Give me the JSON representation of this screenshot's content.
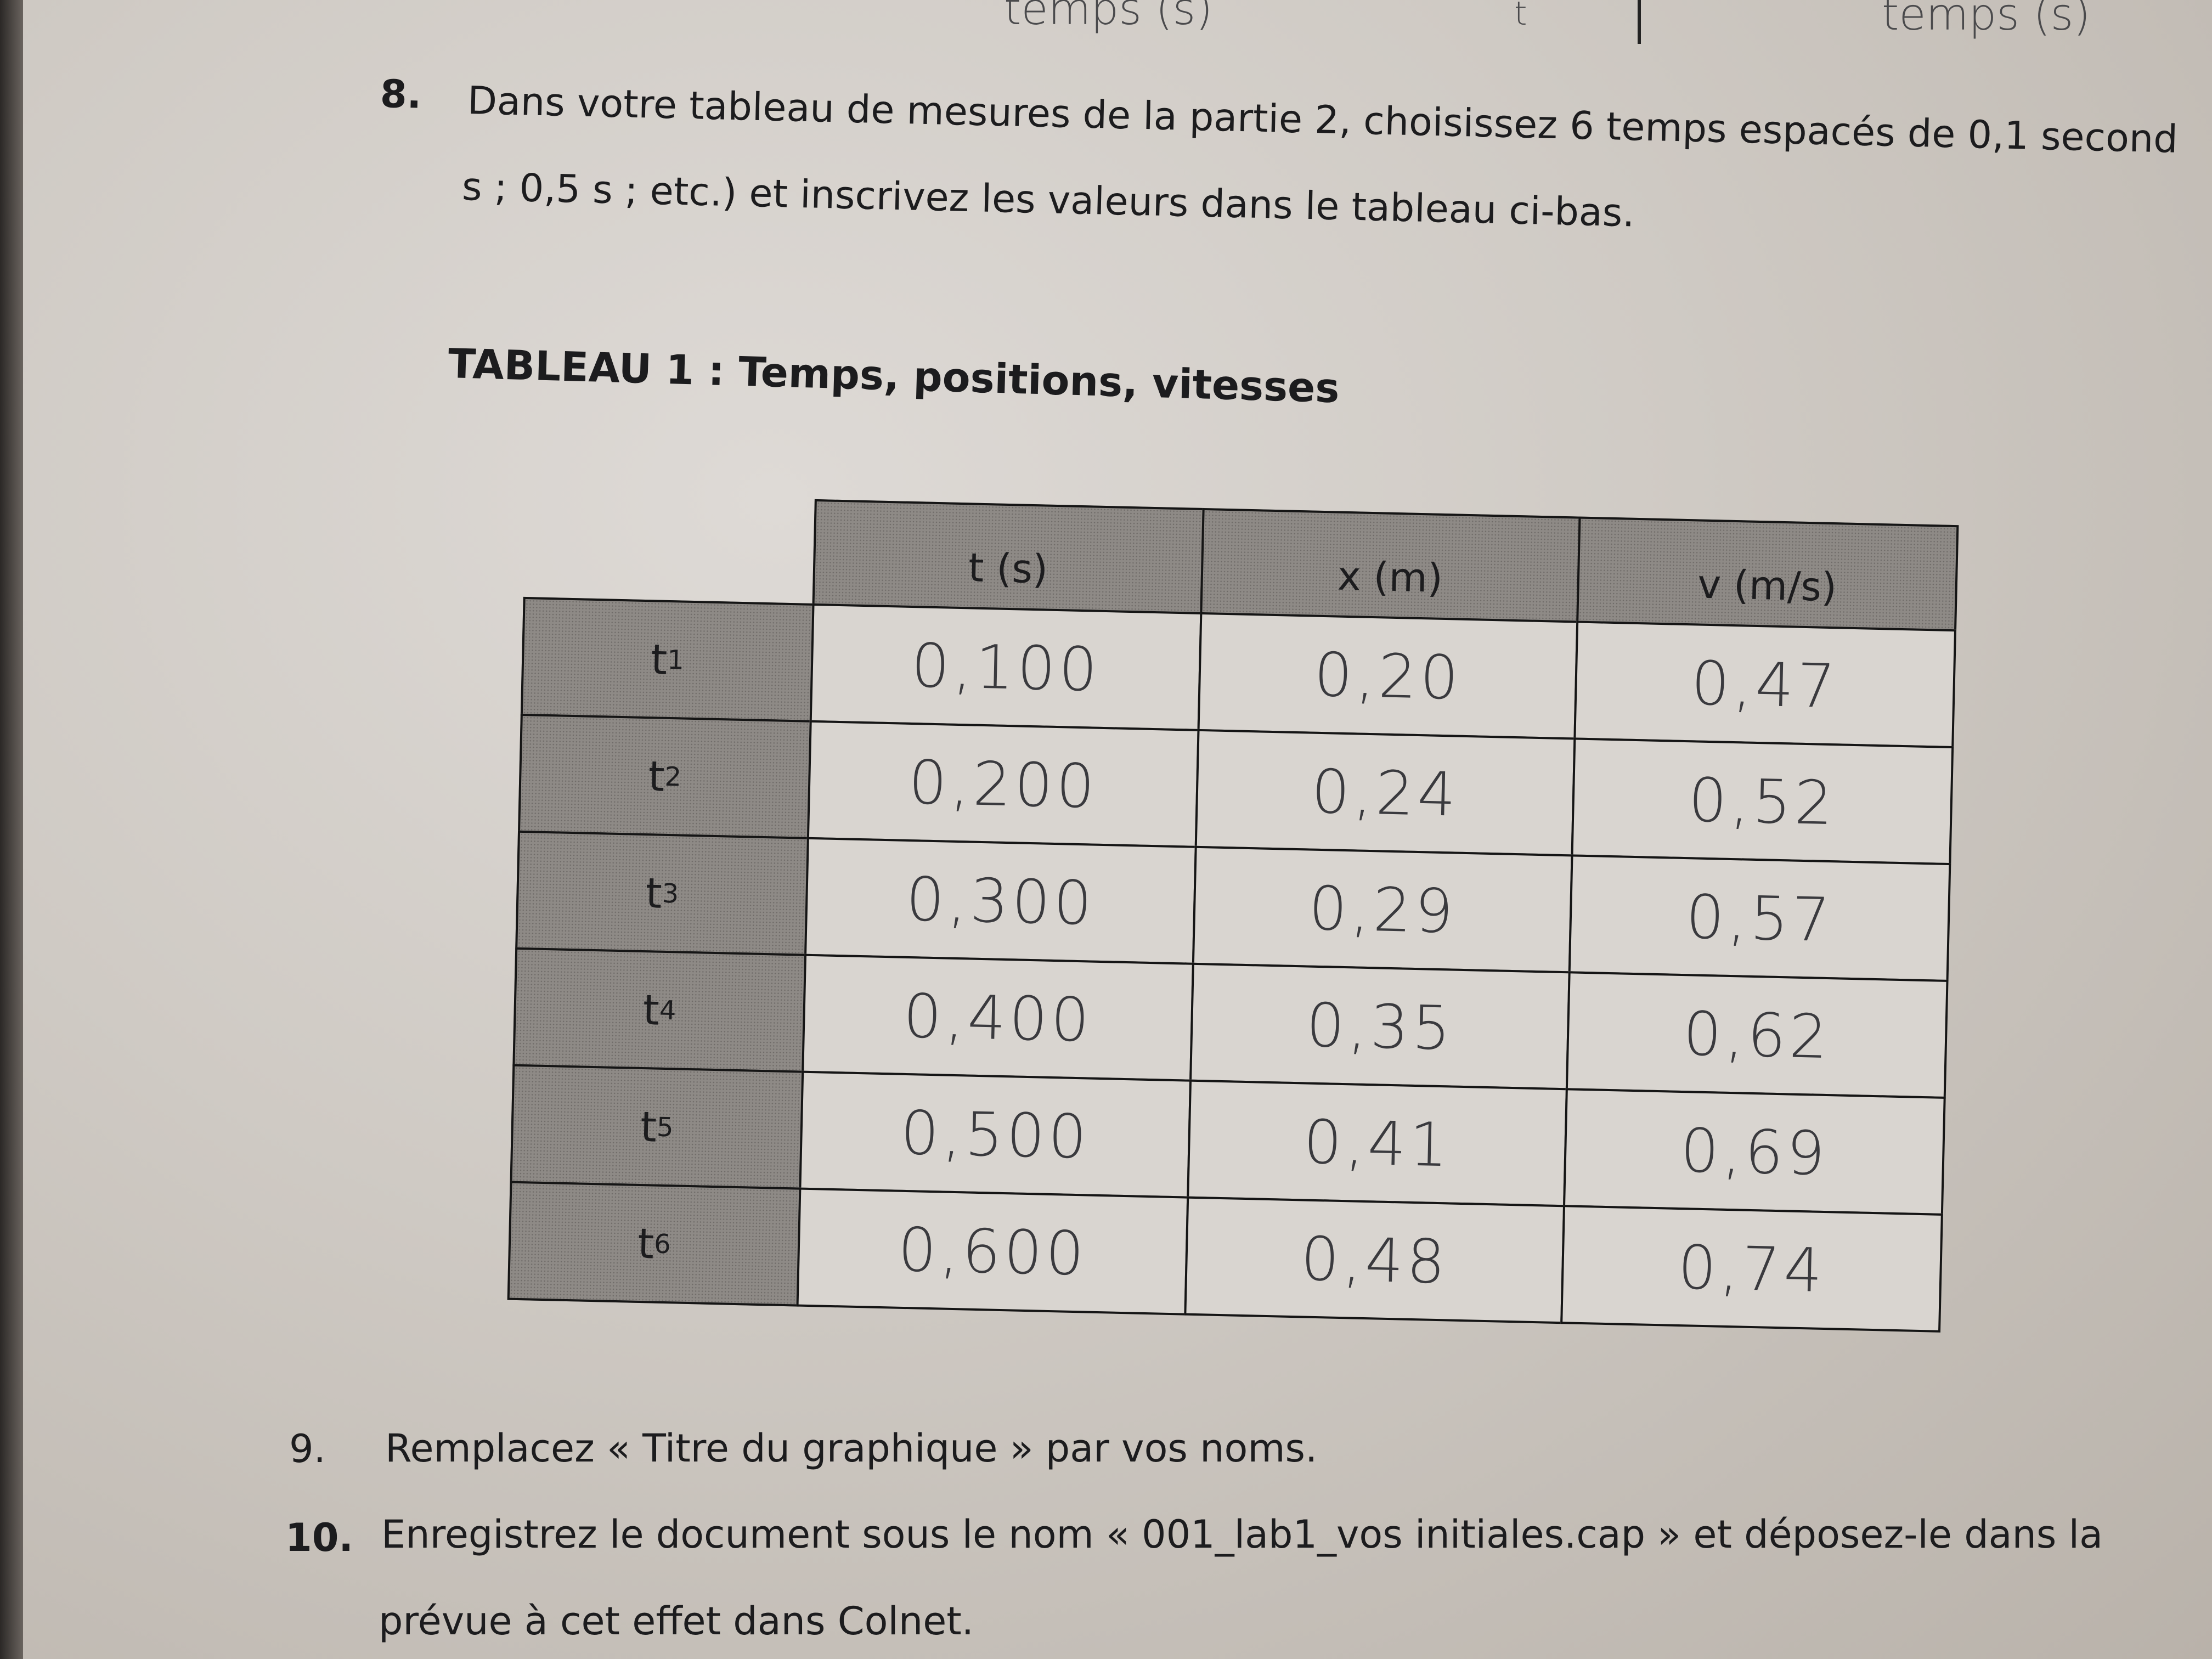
{
  "handwritten_top": {
    "left_axis": "temps (s)",
    "middle": "t",
    "right_axis": "temps (s)"
  },
  "item8": {
    "number": "8.",
    "line1": "Dans votre tableau de mesures de la partie 2, choisissez 6 temps espacés de 0,1 second",
    "line2": "s ; 0,5 s ; etc.) et inscrivez les valeurs dans le tableau ci-bas."
  },
  "table": {
    "title": "TABLEAU 1 : Temps, positions, vitesses",
    "headers": [
      "t (s)",
      "x (m)",
      "v (m/s)"
    ],
    "rows": [
      {
        "label": "t",
        "sub": "1",
        "t": "0,100",
        "x": "0,20",
        "v": "0,47"
      },
      {
        "label": "t",
        "sub": "2",
        "t": "0,200",
        "x": "0,24",
        "v": "0,52"
      },
      {
        "label": "t",
        "sub": "3",
        "t": "0,300",
        "x": "0,29",
        "v": "0,57"
      },
      {
        "label": "t",
        "sub": "4",
        "t": "0,400",
        "x": "0,35",
        "v": "0,62"
      },
      {
        "label": "t",
        "sub": "5",
        "t": "0,500",
        "x": "0,41",
        "v": "0,69"
      },
      {
        "label": "t",
        "sub": "6",
        "t": "0,600",
        "x": "0,48",
        "v": "0,74"
      }
    ]
  },
  "item9": {
    "number": "9.",
    "text": "Remplacez « Titre du graphique » par vos noms."
  },
  "item10": {
    "number": "10.",
    "line1": "Enregistrez le document sous le nom « 001_lab1_vos initiales.cap » et déposez-le dans la",
    "line2": "prévue à cet effet dans Colnet."
  }
}
